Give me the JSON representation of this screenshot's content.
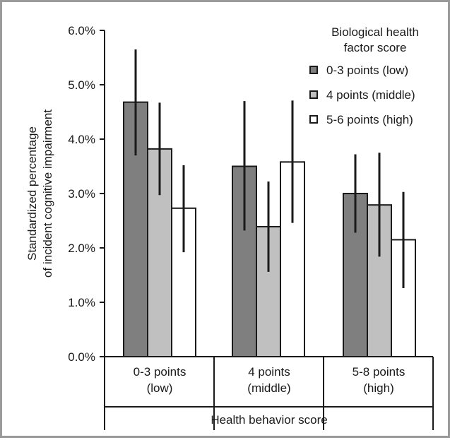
{
  "chart_data": {
    "type": "bar",
    "categories": [
      [
        "0-3 points",
        "(low)"
      ],
      [
        "4  points",
        "(middle)"
      ],
      [
        "5-8 points",
        "(high)"
      ]
    ],
    "series": [
      {
        "name": "0-3 points (low)",
        "color": "#7f7f7f",
        "values": [
          4.68,
          3.5,
          3.0
        ],
        "ci_low": [
          3.7,
          2.32,
          2.28
        ],
        "ci_high": [
          5.65,
          4.7,
          3.72
        ]
      },
      {
        "name": "4 points (middle)",
        "color": "#c0c0c0",
        "values": [
          3.82,
          2.39,
          2.79
        ],
        "ci_low": [
          2.97,
          1.56,
          1.84
        ],
        "ci_high": [
          4.67,
          3.22,
          3.75
        ]
      },
      {
        "name": "5-6 points (high)",
        "color": "#ffffff",
        "values": [
          2.73,
          3.58,
          2.15
        ],
        "ci_low": [
          1.92,
          2.46,
          1.26
        ],
        "ci_high": [
          3.52,
          4.71,
          3.03
        ]
      }
    ],
    "ylim": [
      0,
      6
    ],
    "yticks": [
      "0.0%",
      "1.0%",
      "2.0%",
      "3.0%",
      "4.0%",
      "5.0%",
      "6.0%"
    ],
    "ylabel_lines": [
      "Standardized percentage",
      "of incident cognitive impairment"
    ],
    "xlabel": "Health behavior score",
    "legend_title_lines": [
      "Biological health",
      "factor score"
    ],
    "legend_position": "top-right",
    "grid": false
  }
}
